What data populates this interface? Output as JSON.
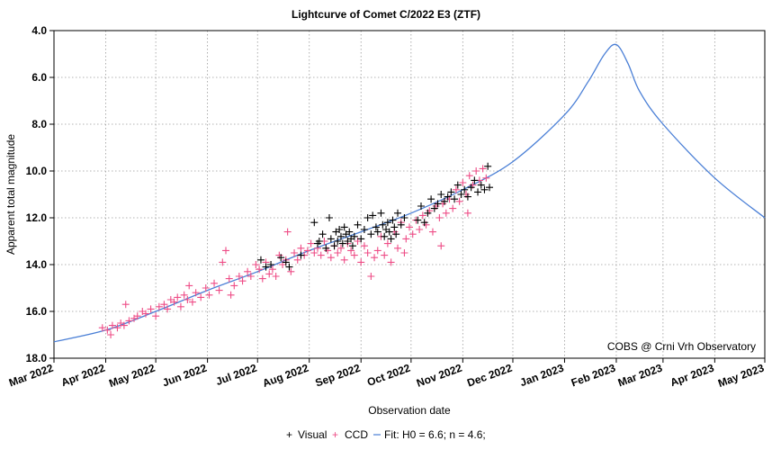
{
  "chart_data": {
    "type": "scatter",
    "title": "Lightcurve of Comet C/2022 E3 (ZTF)",
    "xlabel": "Observation date",
    "ylabel": "Apparent total magnitude",
    "credit": "COBS @ Crni Vrh Observatory",
    "y_inverted": true,
    "ylim": [
      4.0,
      18.0
    ],
    "xlim": [
      "2022-03-01",
      "2023-05-01"
    ],
    "grid": true,
    "legend_position": "bottom-center",
    "x_ticks": [
      {
        "date": "2022-03-01",
        "label": "Mar 2022"
      },
      {
        "date": "2022-04-01",
        "label": "Apr 2022"
      },
      {
        "date": "2022-05-01",
        "label": "May 2022"
      },
      {
        "date": "2022-06-01",
        "label": "Jun 2022"
      },
      {
        "date": "2022-07-01",
        "label": "Jul 2022"
      },
      {
        "date": "2022-08-01",
        "label": "Aug 2022"
      },
      {
        "date": "2022-09-01",
        "label": "Sep 2022"
      },
      {
        "date": "2022-10-01",
        "label": "Oct 2022"
      },
      {
        "date": "2022-11-01",
        "label": "Nov 2022"
      },
      {
        "date": "2022-12-01",
        "label": "Dec 2022"
      },
      {
        "date": "2023-01-01",
        "label": "Jan 2023"
      },
      {
        "date": "2023-02-01",
        "label": "Feb 2023"
      },
      {
        "date": "2023-03-01",
        "label": "Mar 2023"
      },
      {
        "date": "2023-04-01",
        "label": "Apr 2023"
      },
      {
        "date": "2023-05-01",
        "label": "May 2023"
      }
    ],
    "y_ticks": [
      {
        "value": 4,
        "label": "4.0"
      },
      {
        "value": 6,
        "label": "6.0"
      },
      {
        "value": 8,
        "label": "8.0"
      },
      {
        "value": 10,
        "label": "10.0"
      },
      {
        "value": 12,
        "label": "12.0"
      },
      {
        "value": 14,
        "label": "14.0"
      },
      {
        "value": 16,
        "label": "16.0"
      },
      {
        "value": 18,
        "label": "18.0"
      }
    ],
    "colors": {
      "visual": "#000000",
      "ccd": "#ee4c86",
      "fit": "#4a7fd6",
      "grid": "#9a9a9a"
    },
    "series": [
      {
        "name": "Visual",
        "marker": "plus",
        "points": [
          [
            "2022-07-03",
            13.8
          ],
          [
            "2022-07-06",
            14.1
          ],
          [
            "2022-07-09",
            14.0
          ],
          [
            "2022-07-15",
            13.7
          ],
          [
            "2022-07-18",
            13.9
          ],
          [
            "2022-07-20",
            14.1
          ],
          [
            "2022-07-27",
            13.6
          ],
          [
            "2022-08-04",
            12.2
          ],
          [
            "2022-08-06",
            13.1
          ],
          [
            "2022-08-07",
            13.0
          ],
          [
            "2022-08-09",
            12.7
          ],
          [
            "2022-08-11",
            13.3
          ],
          [
            "2022-08-13",
            12.0
          ],
          [
            "2022-08-14",
            12.9
          ],
          [
            "2022-08-16",
            13.2
          ],
          [
            "2022-08-17",
            12.6
          ],
          [
            "2022-08-18",
            13.0
          ],
          [
            "2022-08-19",
            12.5
          ],
          [
            "2022-08-20",
            12.8
          ],
          [
            "2022-08-21",
            13.1
          ],
          [
            "2022-08-22",
            12.4
          ],
          [
            "2022-08-23",
            12.7
          ],
          [
            "2022-08-24",
            13.0
          ],
          [
            "2022-08-25",
            12.6
          ],
          [
            "2022-08-26",
            12.9
          ],
          [
            "2022-08-27",
            13.2
          ],
          [
            "2022-08-28",
            12.8
          ],
          [
            "2022-08-30",
            12.3
          ],
          [
            "2022-09-01",
            12.9
          ],
          [
            "2022-09-03",
            12.5
          ],
          [
            "2022-09-05",
            12.0
          ],
          [
            "2022-09-07",
            12.7
          ],
          [
            "2022-09-08",
            11.9
          ],
          [
            "2022-09-10",
            12.4
          ],
          [
            "2022-09-11",
            12.6
          ],
          [
            "2022-09-13",
            11.8
          ],
          [
            "2022-09-14",
            12.3
          ],
          [
            "2022-09-15",
            12.8
          ],
          [
            "2022-09-16",
            12.5
          ],
          [
            "2022-09-17",
            12.2
          ],
          [
            "2022-09-18",
            12.6
          ],
          [
            "2022-09-19",
            12.9
          ],
          [
            "2022-09-20",
            12.1
          ],
          [
            "2022-09-21",
            12.4
          ],
          [
            "2022-09-22",
            12.7
          ],
          [
            "2022-09-23",
            11.8
          ],
          [
            "2022-09-25",
            12.3
          ],
          [
            "2022-09-27",
            12.0
          ],
          [
            "2022-10-05",
            12.1
          ],
          [
            "2022-10-07",
            11.5
          ],
          [
            "2022-10-09",
            12.2
          ],
          [
            "2022-10-11",
            11.8
          ],
          [
            "2022-10-13",
            11.2
          ],
          [
            "2022-10-15",
            11.6
          ],
          [
            "2022-10-17",
            11.4
          ],
          [
            "2022-10-19",
            11.0
          ],
          [
            "2022-10-21",
            11.3
          ],
          [
            "2022-10-23",
            11.1
          ],
          [
            "2022-10-25",
            10.9
          ],
          [
            "2022-10-27",
            11.2
          ],
          [
            "2022-10-29",
            10.6
          ],
          [
            "2022-10-31",
            11.0
          ],
          [
            "2022-11-02",
            10.8
          ],
          [
            "2022-11-04",
            11.1
          ],
          [
            "2022-11-06",
            10.7
          ],
          [
            "2022-11-08",
            10.4
          ],
          [
            "2022-11-10",
            10.9
          ],
          [
            "2022-11-12",
            10.6
          ],
          [
            "2022-11-14",
            10.8
          ],
          [
            "2022-11-16",
            9.8
          ],
          [
            "2022-11-17",
            10.7
          ]
        ]
      },
      {
        "name": "CCD",
        "marker": "plus",
        "points": [
          [
            "2022-03-30",
            16.7
          ],
          [
            "2022-04-02",
            16.8
          ],
          [
            "2022-04-04",
            17.0
          ],
          [
            "2022-04-05",
            16.6
          ],
          [
            "2022-04-08",
            16.7
          ],
          [
            "2022-04-10",
            16.5
          ],
          [
            "2022-04-12",
            16.6
          ],
          [
            "2022-04-13",
            15.7
          ],
          [
            "2022-04-15",
            16.4
          ],
          [
            "2022-04-18",
            16.3
          ],
          [
            "2022-04-20",
            16.2
          ],
          [
            "2022-04-23",
            16.0
          ],
          [
            "2022-04-25",
            16.1
          ],
          [
            "2022-04-28",
            15.9
          ],
          [
            "2022-05-01",
            16.2
          ],
          [
            "2022-05-03",
            15.8
          ],
          [
            "2022-05-06",
            15.7
          ],
          [
            "2022-05-08",
            15.9
          ],
          [
            "2022-05-10",
            15.5
          ],
          [
            "2022-05-12",
            15.6
          ],
          [
            "2022-05-14",
            15.4
          ],
          [
            "2022-05-16",
            15.8
          ],
          [
            "2022-05-18",
            15.3
          ],
          [
            "2022-05-20",
            15.5
          ],
          [
            "2022-05-21",
            14.9
          ],
          [
            "2022-05-23",
            15.6
          ],
          [
            "2022-05-25",
            15.2
          ],
          [
            "2022-05-28",
            15.4
          ],
          [
            "2022-05-31",
            15.0
          ],
          [
            "2022-06-02",
            15.3
          ],
          [
            "2022-06-05",
            14.8
          ],
          [
            "2022-06-08",
            15.1
          ],
          [
            "2022-06-10",
            13.9
          ],
          [
            "2022-06-12",
            13.4
          ],
          [
            "2022-06-14",
            14.6
          ],
          [
            "2022-06-15",
            15.3
          ],
          [
            "2022-06-17",
            14.9
          ],
          [
            "2022-06-20",
            14.5
          ],
          [
            "2022-06-22",
            14.7
          ],
          [
            "2022-06-25",
            14.3
          ],
          [
            "2022-06-27",
            14.5
          ],
          [
            "2022-06-30",
            14.0
          ],
          [
            "2022-07-02",
            14.2
          ],
          [
            "2022-07-04",
            14.6
          ],
          [
            "2022-07-06",
            13.9
          ],
          [
            "2022-07-08",
            14.4
          ],
          [
            "2022-07-10",
            14.2
          ],
          [
            "2022-07-12",
            14.5
          ],
          [
            "2022-07-14",
            13.6
          ],
          [
            "2022-07-16",
            14.0
          ],
          [
            "2022-07-18",
            13.8
          ],
          [
            "2022-07-19",
            12.6
          ],
          [
            "2022-07-21",
            14.3
          ],
          [
            "2022-07-23",
            13.5
          ],
          [
            "2022-07-25",
            13.8
          ],
          [
            "2022-07-27",
            13.3
          ],
          [
            "2022-07-29",
            13.6
          ],
          [
            "2022-07-31",
            13.4
          ],
          [
            "2022-08-02",
            13.1
          ],
          [
            "2022-08-04",
            13.5
          ],
          [
            "2022-08-06",
            13.3
          ],
          [
            "2022-08-08",
            13.6
          ],
          [
            "2022-08-10",
            13.0
          ],
          [
            "2022-08-12",
            13.4
          ],
          [
            "2022-08-14",
            13.7
          ],
          [
            "2022-08-16",
            13.2
          ],
          [
            "2022-08-18",
            13.5
          ],
          [
            "2022-08-20",
            13.3
          ],
          [
            "2022-08-22",
            13.8
          ],
          [
            "2022-08-24",
            13.1
          ],
          [
            "2022-08-26",
            13.4
          ],
          [
            "2022-08-28",
            13.6
          ],
          [
            "2022-08-30",
            13.0
          ],
          [
            "2022-09-01",
            13.9
          ],
          [
            "2022-09-03",
            13.2
          ],
          [
            "2022-09-05",
            13.5
          ],
          [
            "2022-09-07",
            14.5
          ],
          [
            "2022-09-09",
            13.7
          ],
          [
            "2022-09-11",
            13.4
          ],
          [
            "2022-09-13",
            12.8
          ],
          [
            "2022-09-15",
            13.6
          ],
          [
            "2022-09-17",
            13.1
          ],
          [
            "2022-09-19",
            13.9
          ],
          [
            "2022-09-21",
            12.6
          ],
          [
            "2022-09-23",
            13.3
          ],
          [
            "2022-09-25",
            12.2
          ],
          [
            "2022-09-27",
            13.5
          ],
          [
            "2022-09-28",
            12.9
          ],
          [
            "2022-09-30",
            12.4
          ],
          [
            "2022-10-02",
            12.7
          ],
          [
            "2022-10-04",
            12.1
          ],
          [
            "2022-10-06",
            12.5
          ],
          [
            "2022-10-08",
            11.9
          ],
          [
            "2022-10-10",
            12.3
          ],
          [
            "2022-10-12",
            11.7
          ],
          [
            "2022-10-14",
            12.6
          ],
          [
            "2022-10-16",
            11.5
          ],
          [
            "2022-10-18",
            12.0
          ],
          [
            "2022-10-19",
            13.2
          ],
          [
            "2022-10-20",
            11.4
          ],
          [
            "2022-10-22",
            11.8
          ],
          [
            "2022-10-24",
            11.2
          ],
          [
            "2022-10-26",
            11.6
          ],
          [
            "2022-10-28",
            10.8
          ],
          [
            "2022-10-30",
            11.3
          ],
          [
            "2022-11-01",
            10.5
          ],
          [
            "2022-11-03",
            11.0
          ],
          [
            "2022-11-04",
            11.8
          ],
          [
            "2022-11-05",
            10.2
          ],
          [
            "2022-11-07",
            10.6
          ],
          [
            "2022-11-09",
            10.0
          ],
          [
            "2022-11-11",
            10.4
          ],
          [
            "2022-11-13",
            9.9
          ],
          [
            "2022-11-15",
            10.3
          ]
        ]
      }
    ],
    "fit": {
      "name": "Fit: H0 = 6.6; n = 4.6;",
      "points": [
        [
          "2022-03-01",
          17.3
        ],
        [
          "2022-04-01",
          16.8
        ],
        [
          "2022-05-01",
          16.0
        ],
        [
          "2022-06-01",
          15.1
        ],
        [
          "2022-07-01",
          14.3
        ],
        [
          "2022-08-01",
          13.4
        ],
        [
          "2022-09-01",
          12.6
        ],
        [
          "2022-10-01",
          11.8
        ],
        [
          "2022-11-01",
          10.8
        ],
        [
          "2022-12-01",
          9.6
        ],
        [
          "2023-01-01",
          7.6
        ],
        [
          "2023-01-15",
          6.2
        ],
        [
          "2023-01-25",
          5.0
        ],
        [
          "2023-02-01",
          4.6
        ],
        [
          "2023-02-08",
          5.4
        ],
        [
          "2023-02-15",
          6.6
        ],
        [
          "2023-03-01",
          8.0
        ],
        [
          "2023-04-01",
          10.3
        ],
        [
          "2023-05-01",
          12.0
        ]
      ]
    }
  },
  "legend": {
    "visual_symbol": "+",
    "visual_label": "Visual",
    "ccd_symbol": "+",
    "ccd_label": "CCD",
    "fit_label": "Fit: H0 = 6.6; n = 4.6;"
  }
}
